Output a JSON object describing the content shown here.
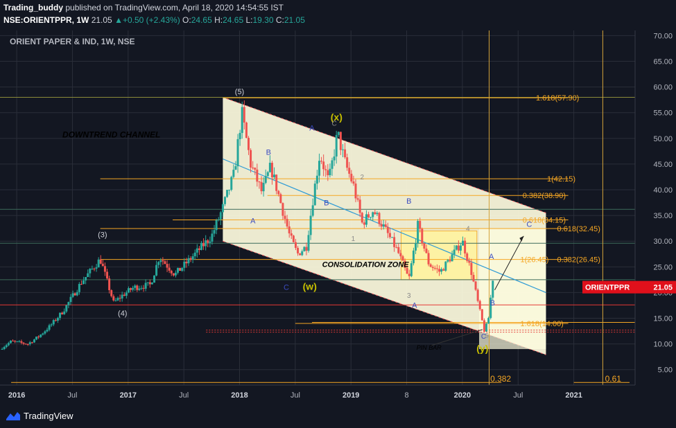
{
  "header": {
    "author": "Trading_buddy",
    "published": " published on TradingView.com, April 18, 2020 14:54:55 IST",
    "symbol": "NSE:ORIENTPPR, 1W",
    "last": "21.05",
    "change": "+0.50 (+2.43%)",
    "o_label": "O:",
    "o": "24.65",
    "h_label": "H:",
    "h": "24.65",
    "l_label": "L:",
    "l": "19.30",
    "c_label": "C:",
    "c": "21.05"
  },
  "footer": {
    "brand": "TradingView"
  },
  "chart_data": {
    "type": "candlestick",
    "title": "ORIENT PAPER & IND, 1W, NSE",
    "price_tag": {
      "label": "ORIENTPPR",
      "value": 21.05,
      "color": "#e0101b"
    },
    "ylim": [
      2.0,
      71.0
    ],
    "xlim": [
      2015.85,
      2021.55
    ],
    "y_ticks": [
      5,
      10,
      15,
      20,
      25,
      30,
      35,
      40,
      45,
      50,
      55,
      60,
      65,
      70
    ],
    "y_tick_labels": [
      "5.00",
      "10.00",
      "15.00",
      "20.00",
      "25.00",
      "30.00",
      "35.00",
      "40.00",
      "45.00",
      "50.00",
      "55.00",
      "60.00",
      "65.00",
      "70.00"
    ],
    "x_ticks": [
      {
        "t": 2016.0,
        "label": "2016",
        "bold": true
      },
      {
        "t": 2016.5,
        "label": "Jul",
        "bold": false
      },
      {
        "t": 2017.0,
        "label": "2017",
        "bold": true
      },
      {
        "t": 2017.5,
        "label": "Jul",
        "bold": false
      },
      {
        "t": 2018.0,
        "label": "2018",
        "bold": true
      },
      {
        "t": 2018.5,
        "label": "Jul",
        "bold": false
      },
      {
        "t": 2019.0,
        "label": "2019",
        "bold": true
      },
      {
        "t": 2019.5,
        "label": "8",
        "bold": false
      },
      {
        "t": 2020.0,
        "label": "2020",
        "bold": true
      },
      {
        "t": 2020.5,
        "label": "Jul",
        "bold": false
      },
      {
        "t": 2021.0,
        "label": "2021",
        "bold": true
      }
    ],
    "anchors": [
      [
        2015.85,
        9.0
      ],
      [
        2015.95,
        10.5
      ],
      [
        2016.1,
        10.0
      ],
      [
        2016.2,
        11.5
      ],
      [
        2016.3,
        13.5
      ],
      [
        2016.42,
        16.5
      ],
      [
        2016.58,
        22.0
      ],
      [
        2016.75,
        26.5
      ],
      [
        2016.87,
        18.0
      ],
      [
        2016.95,
        19.5
      ],
      [
        2017.05,
        21.0
      ],
      [
        2017.2,
        21.5
      ],
      [
        2017.28,
        27.0
      ],
      [
        2017.42,
        23.5
      ],
      [
        2017.6,
        27.5
      ],
      [
        2017.75,
        31.0
      ],
      [
        2017.85,
        36.5
      ],
      [
        2017.95,
        43.0
      ],
      [
        2018.02,
        55.0
      ],
      [
        2018.1,
        45.0
      ],
      [
        2018.2,
        39.5
      ],
      [
        2018.28,
        44.5
      ],
      [
        2018.35,
        39.0
      ],
      [
        2018.45,
        31.0
      ],
      [
        2018.52,
        27.5
      ],
      [
        2018.6,
        29.0
      ],
      [
        2018.65,
        37.0
      ],
      [
        2018.72,
        47.0
      ],
      [
        2018.8,
        41.5
      ],
      [
        2018.88,
        51.0
      ],
      [
        2018.95,
        45.0
      ],
      [
        2019.02,
        41.0
      ],
      [
        2019.1,
        33.5
      ],
      [
        2019.2,
        36.0
      ],
      [
        2019.3,
        32.5
      ],
      [
        2019.42,
        28.0
      ],
      [
        2019.52,
        22.5
      ],
      [
        2019.6,
        33.0
      ],
      [
        2019.7,
        25.5
      ],
      [
        2019.8,
        24.0
      ],
      [
        2020.0,
        30.0
      ],
      [
        2020.08,
        24.0
      ],
      [
        2020.15,
        17.0
      ],
      [
        2020.2,
        12.3
      ],
      [
        2020.24,
        15.5
      ],
      [
        2020.27,
        23.0
      ],
      [
        2020.29,
        21.05
      ]
    ],
    "annotations": [
      {
        "t": 2018.0,
        "p": 58.6,
        "text": "(5)",
        "color": "#d1d4dc",
        "size": 11
      },
      {
        "t": 2016.77,
        "p": 30.8,
        "text": "(3)",
        "color": "#d1d4dc",
        "size": 11
      },
      {
        "t": 2016.95,
        "p": 15.5,
        "text": "(4)",
        "color": "#d1d4dc",
        "size": 11
      },
      {
        "t": 2018.87,
        "p": 53.5,
        "text": "(x)",
        "color": "#c8c000",
        "size": 14,
        "bold": true
      },
      {
        "t": 2018.63,
        "p": 20.5,
        "text": "(w)",
        "color": "#c8c000",
        "size": 14,
        "bold": true
      },
      {
        "t": 2020.18,
        "p": 8.5,
        "text": "(y)",
        "color": "#c8c000",
        "size": 14,
        "bold": true
      },
      {
        "t": 2018.65,
        "p": 51.5,
        "text": "A",
        "color": "#3b4cc0",
        "size": 11
      },
      {
        "t": 2018.26,
        "p": 46.8,
        "text": "B",
        "color": "#3b4cc0",
        "size": 11
      },
      {
        "t": 2018.12,
        "p": 33.5,
        "text": "A",
        "color": "#3b4cc0",
        "size": 11
      },
      {
        "t": 2018.42,
        "p": 20.5,
        "text": "C",
        "color": "#3b4cc0",
        "size": 11
      },
      {
        "t": 2018.78,
        "p": 37.0,
        "text": "B",
        "color": "#3b4cc0",
        "size": 11
      },
      {
        "t": 2018.85,
        "p": 52.5,
        "text": "C",
        "color": "#8a8a8a",
        "size": 10
      },
      {
        "t": 2019.1,
        "p": 42.0,
        "text": "2",
        "color": "#8a8a8a",
        "size": 10
      },
      {
        "t": 2019.52,
        "p": 37.3,
        "text": "B",
        "color": "#3b4cc0",
        "size": 11
      },
      {
        "t": 2019.02,
        "p": 30.0,
        "text": "1",
        "color": "#8a8a8a",
        "size": 10
      },
      {
        "t": 2019.52,
        "p": 19.0,
        "text": "3",
        "color": "#8a8a8a",
        "size": 10
      },
      {
        "t": 2019.57,
        "p": 17.0,
        "text": "A",
        "color": "#3b4cc0",
        "size": 11
      },
      {
        "t": 2020.05,
        "p": 32.0,
        "text": "4",
        "color": "#8a8a8a",
        "size": 10
      },
      {
        "t": 2020.26,
        "p": 26.5,
        "text": "A",
        "color": "#3b4cc0",
        "size": 11
      },
      {
        "t": 2020.27,
        "p": 17.5,
        "text": "B",
        "color": "#3b4cc0",
        "size": 11
      },
      {
        "t": 2020.19,
        "p": 11.0,
        "text": "C",
        "color": "#3b4cc0",
        "size": 10
      },
      {
        "t": 2020.22,
        "p": 11.2,
        "text": "5",
        "color": "#8a8a8a",
        "size": 9
      },
      {
        "t": 2020.6,
        "p": 32.8,
        "text": "C",
        "color": "#3b4cc0",
        "size": 11
      },
      {
        "t": 2016.85,
        "p": 50.2,
        "text": "DOWNTREND CHANNEL",
        "color": "#000000",
        "size": 12,
        "bold": true,
        "italic": true
      },
      {
        "t": 2019.13,
        "p": 25.0,
        "text": "CONSOLIDATION ZONE",
        "color": "#000000",
        "size": 11,
        "bold": true,
        "italic": true
      },
      {
        "t": 2019.7,
        "p": 8.9,
        "text": "PIN BAR",
        "color": "#000000",
        "size": 9,
        "italic": true
      }
    ],
    "fib_levels": [
      {
        "label": "1.618(57.90)",
        "value": 57.9
      },
      {
        "label": "1(42.15)",
        "value": 42.15
      },
      {
        "label": "0.382(38.90)",
        "value": 38.9
      },
      {
        "label": "0.618(34.15)",
        "value": 34.15
      },
      {
        "label": "0.618(32.45)",
        "value": 32.45
      },
      {
        "label": "1(26.45)",
        "value": 26.45
      },
      {
        "label": "0.382(26.45)",
        "value": 26.45
      },
      {
        "label": "1.618(14.00)",
        "value": 14.0
      },
      {
        "label": "0.382",
        "value": 2.5
      },
      {
        "label": "0.61",
        "value": 2.5
      }
    ],
    "horizontal_lines": [
      58.0,
      36.2,
      29.6,
      22.5,
      17.6,
      14.2,
      12.7,
      12.3
    ],
    "colors": {
      "up": "#26a69a",
      "down": "#ef5350",
      "fib": "#f5a623",
      "channel_fill": "#fffde0",
      "consolidation_fill": "#fff3a0",
      "trendline": "#2e9bd6",
      "bg": "#131722",
      "grid": "#2a2e39",
      "support": "#e53935",
      "axis_text": "#b2b5be",
      "vertical": "#d4a33a"
    }
  }
}
